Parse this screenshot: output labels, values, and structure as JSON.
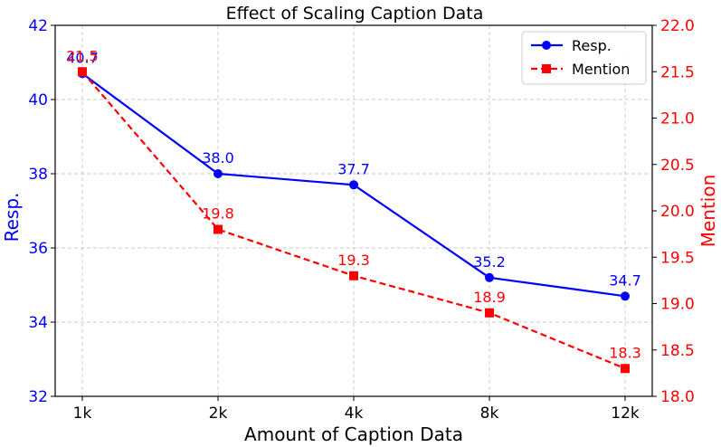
{
  "chart_data": {
    "type": "line",
    "title": "Effect of Scaling Caption Data",
    "xlabel": "Amount of Caption Data",
    "categories": [
      "1k",
      "2k",
      "4k",
      "8k",
      "12k"
    ],
    "grid": true,
    "legend_position": "top-right",
    "y_left": {
      "label": "Resp.",
      "color": "#0000ff",
      "lim": [
        32,
        42
      ],
      "ticks": [
        "32",
        "34",
        "36",
        "38",
        "40",
        "42"
      ]
    },
    "y_right": {
      "label": "Mention",
      "color": "#ff0000",
      "lim": [
        18.0,
        22.0
      ],
      "ticks": [
        "18.0",
        "18.5",
        "19.0",
        "19.5",
        "20.0",
        "20.5",
        "21.0",
        "21.5",
        "22.0"
      ]
    },
    "series": [
      {
        "name": "Resp.",
        "axis": "left",
        "color": "#0000ff",
        "style": "solid",
        "marker": "circle",
        "values": [
          40.7,
          38.0,
          37.7,
          35.2,
          34.7
        ],
        "labels": [
          "40.7",
          "38.0",
          "37.7",
          "35.2",
          "34.7"
        ]
      },
      {
        "name": "Mention",
        "axis": "right",
        "color": "#ff0000",
        "style": "dashed",
        "marker": "square",
        "values": [
          21.5,
          19.8,
          19.3,
          18.9,
          18.3
        ],
        "labels": [
          "21.5",
          "19.8",
          "19.3",
          "18.9",
          "18.3"
        ]
      }
    ]
  }
}
